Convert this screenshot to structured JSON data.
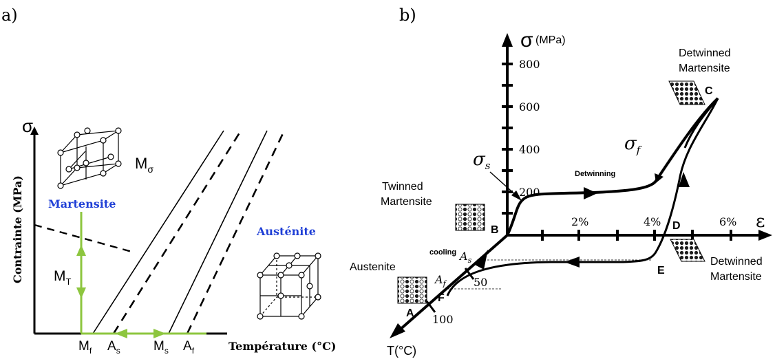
{
  "panel_a": {
    "label": "a)",
    "y_axis_symbol": "σ",
    "y_axis_title": "Contrainte (MPa)",
    "x_axis_title": "Température (°C)",
    "martensite_label": "Martensite",
    "austenite_label": "Austénite",
    "m_sigma_label": "M",
    "m_sigma_sub": "σ",
    "mt_label": "M",
    "mt_sub": "T",
    "temperature_marks": [
      {
        "main": "M",
        "sub": "f"
      },
      {
        "main": "A",
        "sub": "s"
      },
      {
        "main": "M",
        "sub": "s"
      },
      {
        "main": "A",
        "sub": "f"
      }
    ],
    "accent_color": "#8dc63f",
    "label_color": "#1f3fd6"
  },
  "panel_b": {
    "label": "b)",
    "y_axis_symbol": "σ",
    "y_axis_unit": "(MPa)",
    "x_axis_symbol": "ε",
    "t_axis_title": "T(°C)",
    "stress_ticks": [
      "800",
      "600",
      "400",
      "200"
    ],
    "strain_ticks": [
      "2%",
      "4%",
      "6%"
    ],
    "temperature_ticks": [
      "50",
      "100"
    ],
    "points": [
      "A",
      "B",
      "C",
      "D",
      "E",
      "F"
    ],
    "sigma_s": {
      "main": "σ",
      "sub": "s"
    },
    "sigma_f": {
      "main": "σ",
      "sub": "f"
    },
    "a_s": {
      "main": "A",
      "sub": "s"
    },
    "a_f": {
      "main": "A",
      "sub": "f"
    },
    "twinned_martensite": [
      "Twinned",
      "Martensite"
    ],
    "detwinned_martensite_top": [
      "Detwinned",
      "Martensite"
    ],
    "detwinned_martensite_bottom": [
      "Detwinned",
      "Martensite"
    ],
    "austenite_label": "Austenite",
    "cooling_label": "cooling",
    "detwinning_label": "Detwinning"
  }
}
